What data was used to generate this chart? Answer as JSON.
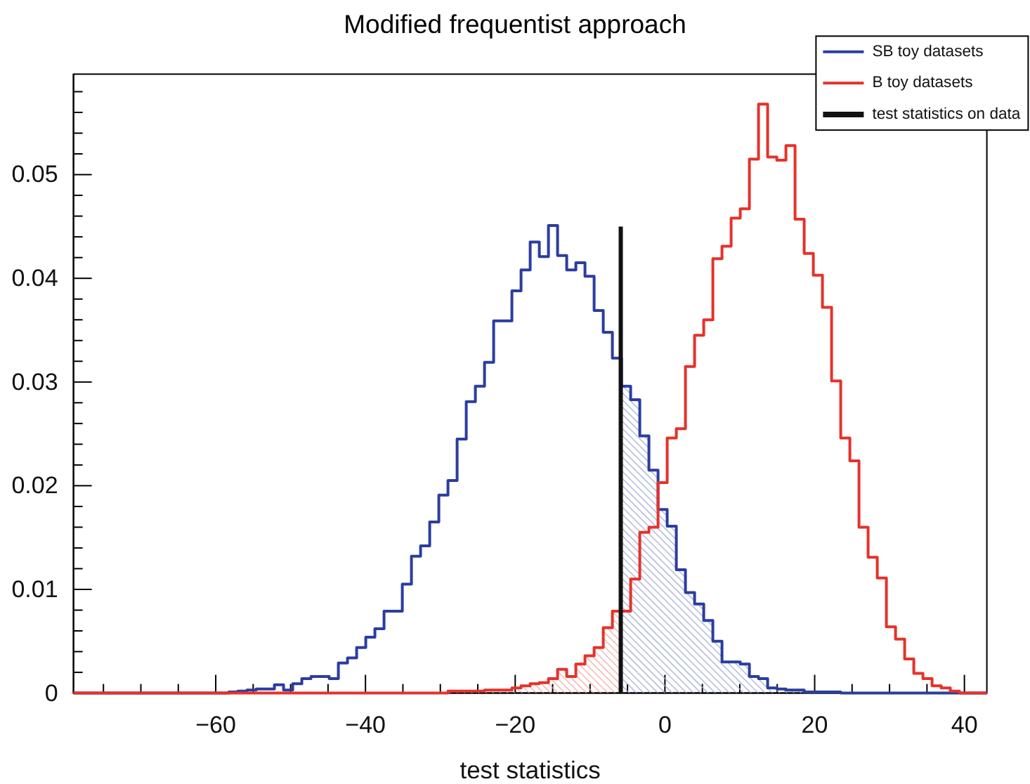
{
  "chart_data": {
    "type": "histogram",
    "title": "Modified frequentist approach",
    "xlabel": "test statistics",
    "bins": [
      -79,
      -77.78,
      -76.56,
      -75.34,
      -74.12,
      -72.9,
      -71.68,
      -70.46,
      -69.24,
      -68.02,
      -66.8,
      -65.58,
      -64.36,
      -63.14,
      -61.92,
      -60.7,
      -59.48,
      -58.26,
      -57.04,
      -55.82,
      -54.6,
      -53.38,
      -52.16,
      -50.94,
      -49.72,
      -48.5,
      -47.28,
      -46.06,
      -44.84,
      -43.62,
      -42.4,
      -41.18,
      -39.96,
      -38.74,
      -37.52,
      -36.3,
      -35.08,
      -33.86,
      -32.64,
      -31.42,
      -30.2,
      -28.98,
      -27.76,
      -26.54,
      -25.32,
      -24.1,
      -22.88,
      -21.66,
      -20.44,
      -19.22,
      -18,
      -16.78,
      -15.56,
      -14.34,
      -13.12,
      -11.9,
      -10.68,
      -9.46,
      -8.24,
      -7.02,
      -5.8,
      -4.58,
      -3.36,
      -2.14,
      -0.92,
      0.3,
      1.52,
      2.74,
      3.96,
      5.18,
      6.4,
      7.62,
      8.84,
      10.06,
      11.28,
      12.5,
      13.72,
      14.94,
      16.16,
      17.38,
      18.6,
      19.82,
      21.04,
      22.26,
      23.48,
      24.7,
      25.92,
      27.14,
      28.36,
      29.58,
      30.8,
      32.02,
      33.24,
      34.46,
      35.68,
      36.9,
      38.12,
      39.34,
      40.56,
      41.78,
      43
    ],
    "xlim": [
      -79,
      43
    ],
    "ylim": [
      0,
      0.0597
    ],
    "xticks": [
      {
        "value": -75,
        "label": null
      },
      {
        "value": -70,
        "label": null
      },
      {
        "value": -65,
        "label": null
      },
      {
        "value": -60,
        "label": "−60"
      },
      {
        "value": -55,
        "label": null
      },
      {
        "value": -50,
        "label": null
      },
      {
        "value": -45,
        "label": null
      },
      {
        "value": -40,
        "label": "−40"
      },
      {
        "value": -35,
        "label": null
      },
      {
        "value": -30,
        "label": null
      },
      {
        "value": -25,
        "label": null
      },
      {
        "value": -20,
        "label": "−20"
      },
      {
        "value": -15,
        "label": null
      },
      {
        "value": -10,
        "label": null
      },
      {
        "value": -5,
        "label": null
      },
      0,
      {
        "value": 5,
        "label": null
      },
      {
        "value": 10,
        "label": null
      },
      {
        "value": 15,
        "label": null
      },
      20,
      {
        "value": 25,
        "label": null
      },
      {
        "value": 30,
        "label": null
      },
      {
        "value": 35,
        "label": null
      },
      40
    ],
    "yticks": [
      0,
      {
        "value": 0.002,
        "label": null
      },
      {
        "value": 0.004,
        "label": null
      },
      {
        "value": 0.006,
        "label": null
      },
      {
        "value": 0.008,
        "label": null
      },
      0.01,
      {
        "value": 0.012,
        "label": null
      },
      {
        "value": 0.014,
        "label": null
      },
      {
        "value": 0.016,
        "label": null
      },
      {
        "value": 0.018,
        "label": null
      },
      0.02,
      {
        "value": 0.022,
        "label": null
      },
      {
        "value": 0.024,
        "label": null
      },
      {
        "value": 0.026,
        "label": null
      },
      {
        "value": 0.028,
        "label": null
      },
      0.03,
      {
        "value": 0.032,
        "label": null
      },
      {
        "value": 0.034,
        "label": null
      },
      {
        "value": 0.036,
        "label": null
      },
      {
        "value": 0.038,
        "label": null
      },
      0.04,
      {
        "value": 0.042,
        "label": null
      },
      {
        "value": 0.044,
        "label": null
      },
      {
        "value": 0.046,
        "label": null
      },
      {
        "value": 0.048,
        "label": null
      },
      0.05,
      {
        "value": 0.052,
        "label": null
      },
      {
        "value": 0.054,
        "label": null
      },
      {
        "value": 0.056,
        "label": null
      },
      {
        "value": 0.058,
        "label": null
      }
    ],
    "legend": "top right",
    "series": [
      {
        "type": "area",
        "color": "#9ea6d6",
        "x": [
          -5.8,
          -4.58,
          -4.58,
          -3.36,
          -3.36,
          -2.14,
          -2.14,
          -0.92,
          -0.92,
          0.3,
          0.3,
          1.52,
          1.52,
          2.74,
          2.74,
          3.96,
          3.96,
          5.18,
          5.18,
          6.4,
          6.4,
          7.62,
          7.62,
          8.84,
          8.84,
          10.06,
          10.06,
          11.28,
          11.28,
          12.5,
          12.5,
          13.72,
          13.72,
          14.94,
          14.94,
          16.16,
          16.16,
          17.38,
          17.38,
          18.6,
          18.6,
          19.82,
          19.82,
          21.04,
          21.04,
          22.26,
          22.26,
          23.48
        ],
        "values": [
          0.0296,
          0.0296,
          0.0283,
          0.0283,
          0.0248,
          0.0248,
          0.0215,
          0.0215,
          0.0177,
          0.0177,
          0.0161,
          0.0161,
          0.0119,
          0.0119,
          0.0097,
          0.0097,
          0.0086,
          0.0086,
          0.007,
          0.007,
          0.005,
          0.005,
          0.003,
          0.003,
          0.003,
          0.003,
          0.0028,
          0.0028,
          0.0016,
          0.0016,
          0.0014,
          0.0014,
          0.0005,
          0.0005,
          0.0004,
          0.0004,
          0.0003,
          0.0003,
          0.0003,
          0.0003,
          0.0001,
          0.0001,
          0.0001,
          0.0001,
          0.0001,
          0.0001,
          0.0001,
          0.0001
        ]
      },
      {
        "type": "area",
        "color": "#f2a59e",
        "x": [
          -28.98,
          -27.76,
          -27.76,
          -26.54,
          -26.54,
          -25.32,
          -25.32,
          -24.1,
          -24.1,
          -22.88,
          -22.88,
          -21.66,
          -21.66,
          -20.44,
          -20.44,
          -19.22,
          -19.22,
          -18,
          -18,
          -16.78,
          -16.78,
          -15.56,
          -15.56,
          -14.34,
          -14.34,
          -13.12,
          -13.12,
          -11.9,
          -11.9,
          -10.68,
          -10.68,
          -9.46,
          -9.46,
          -8.24,
          -8.24,
          -7.02,
          -7.02,
          -5.8
        ],
        "values": [
          0.0002,
          0.0002,
          0.0002,
          0.0002,
          0.0002,
          0.0002,
          0.0002,
          0.0002,
          0.0003,
          0.0003,
          0.0003,
          0.0003,
          0.0003,
          0.0003,
          0.0005,
          0.0005,
          0.0007,
          0.0007,
          0.0009,
          0.0009,
          0.001,
          0.001,
          0.0014,
          0.0014,
          0.0023,
          0.0023,
          0.0016,
          0.0016,
          0.0028,
          0.0028,
          0.0036,
          0.0036,
          0.0044,
          0.0044,
          0.0063,
          0.0063,
          0.0079,
          0.0079
        ]
      },
      {
        "name": "SB toy datasets",
        "color": "#2b3d9f",
        "values": [
          0,
          0,
          0,
          0,
          0,
          0,
          0,
          0,
          0,
          0,
          0,
          0,
          0,
          0,
          0,
          0,
          0,
          0.0001,
          0.0002,
          0.0003,
          0.0004,
          0.0004,
          0.0008,
          0.0003,
          0.0009,
          0.0014,
          0.0016,
          0.0016,
          0.0014,
          0.0029,
          0.0034,
          0.0044,
          0.0054,
          0.0062,
          0.0079,
          0.0079,
          0.0105,
          0.0132,
          0.0142,
          0.0165,
          0.0191,
          0.0205,
          0.0245,
          0.0281,
          0.0296,
          0.0319,
          0.0359,
          0.0359,
          0.0388,
          0.0408,
          0.0435,
          0.0421,
          0.0451,
          0.0422,
          0.0408,
          0.0415,
          0.0402,
          0.0369,
          0.0348,
          0.0323,
          0.0296,
          0.0283,
          0.0248,
          0.0215,
          0.0177,
          0.0161,
          0.0119,
          0.0097,
          0.0086,
          0.007,
          0.005,
          0.003,
          0.003,
          0.0028,
          0.0016,
          0.0014,
          0.0005,
          0.0004,
          0.0003,
          0.0003,
          0.0001,
          0.0001,
          0.0001,
          0.0001,
          0,
          0,
          0,
          0,
          0,
          0,
          0,
          0,
          0,
          0,
          0,
          0,
          0,
          0,
          0,
          0
        ]
      },
      {
        "name": "B toy datasets",
        "color": "#e5322a",
        "values": [
          0,
          0,
          0,
          0,
          0,
          0,
          0,
          0,
          0,
          0,
          0,
          0,
          0,
          0,
          0,
          0,
          0,
          0,
          0,
          0,
          0,
          0,
          0,
          0,
          0,
          0,
          0,
          0,
          0,
          0,
          0,
          0,
          0,
          0,
          0,
          0,
          0,
          0,
          0,
          0,
          0,
          0.0002,
          0.0002,
          0.0002,
          0.0002,
          0.0003,
          0.0003,
          0.0003,
          0.0005,
          0.0007,
          0.0009,
          0.001,
          0.0014,
          0.0023,
          0.0016,
          0.0028,
          0.0036,
          0.0044,
          0.0063,
          0.0079,
          0.0079,
          0.011,
          0.0155,
          0.016,
          0.0203,
          0.0246,
          0.0255,
          0.0315,
          0.0345,
          0.036,
          0.0419,
          0.0431,
          0.0458,
          0.0467,
          0.0515,
          0.0568,
          0.0517,
          0.0514,
          0.0528,
          0.0457,
          0.0424,
          0.0403,
          0.0372,
          0.0301,
          0.0246,
          0.0224,
          0.016,
          0.0131,
          0.0111,
          0.0064,
          0.0052,
          0.0033,
          0.0019,
          0.0014,
          0.0007,
          0.0005,
          0.0002,
          0,
          0,
          0
        ]
      },
      {
        "name": "test statistics on data",
        "type": "line",
        "color": "#111111",
        "x": [
          -5.9,
          -5.9
        ],
        "values": [
          0,
          0.045
        ]
      }
    ]
  }
}
